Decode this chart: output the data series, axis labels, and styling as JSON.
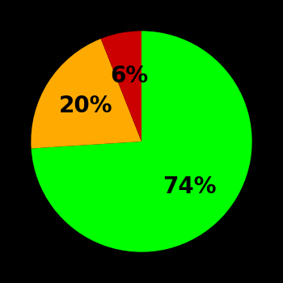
{
  "slices": [
    74,
    20,
    6
  ],
  "colors": [
    "#00ff00",
    "#ffaa00",
    "#cc0000"
  ],
  "labels": [
    "74%",
    "20%",
    "6%"
  ],
  "background_color": "#000000",
  "startangle": 90,
  "label_fontsize": 20,
  "label_fontweight": "bold",
  "label_r": 0.6
}
